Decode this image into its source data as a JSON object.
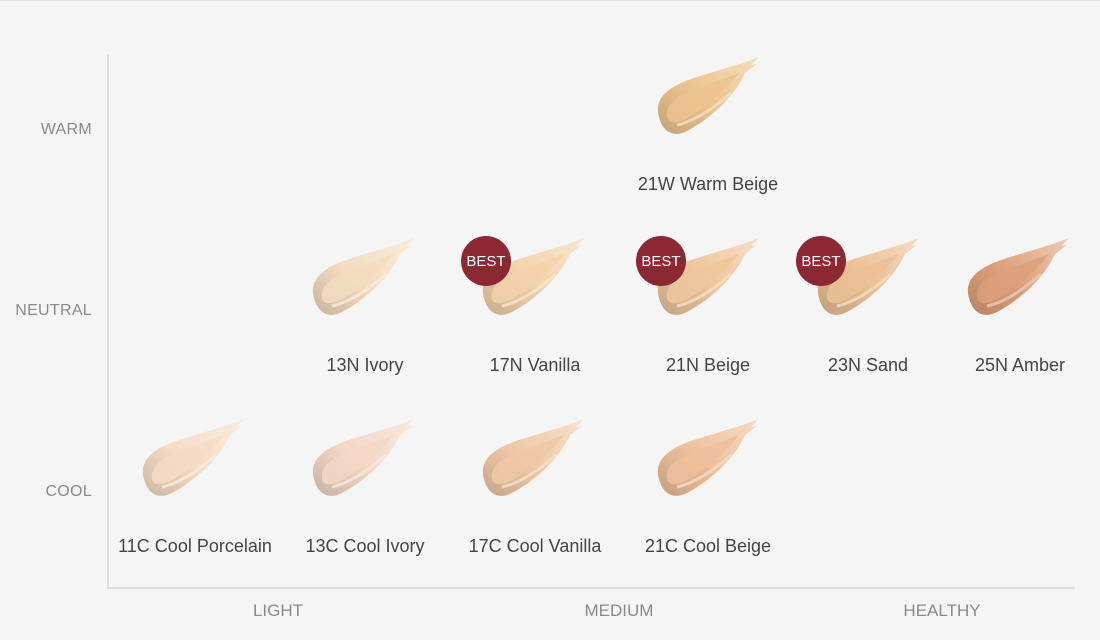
{
  "chart_data": {
    "type": "scatter",
    "y_categories": [
      "WARM",
      "NEUTRAL",
      "COOL"
    ],
    "x_categories": [
      "LIGHT",
      "MEDIUM",
      "HEALTHY"
    ],
    "badge_label": "BEST",
    "badge_color": "#8b2832",
    "shades": [
      {
        "name": "21W Warm Beige",
        "tone": "WARM",
        "column": 4,
        "color": "#ecc38f",
        "best": false
      },
      {
        "name": "13N Ivory",
        "tone": "NEUTRAL",
        "column": 2,
        "color": "#f3dcc0",
        "best": false
      },
      {
        "name": "17N Vanilla",
        "tone": "NEUTRAL",
        "column": 3,
        "color": "#f2d2aa",
        "best": true
      },
      {
        "name": "21N Beige",
        "tone": "NEUTRAL",
        "column": 4,
        "color": "#eec59c",
        "best": true
      },
      {
        "name": "23N Sand",
        "tone": "NEUTRAL",
        "column": 5,
        "color": "#ebbf94",
        "best": true
      },
      {
        "name": "25N Amber",
        "tone": "NEUTRAL",
        "column": 6,
        "color": "#dca07a",
        "best": false
      },
      {
        "name": "11C Cool Porcelain",
        "tone": "COOL",
        "column": 1,
        "color": "#f6dcc6",
        "best": false
      },
      {
        "name": "13C Cool Ivory",
        "tone": "COOL",
        "column": 2,
        "color": "#f3d7c5",
        "best": false
      },
      {
        "name": "17C Cool Vanilla",
        "tone": "COOL",
        "column": 3,
        "color": "#f0c8a6",
        "best": false
      },
      {
        "name": "21C Cool Beige",
        "tone": "COOL",
        "column": 4,
        "color": "#eec09a",
        "best": false
      }
    ]
  }
}
